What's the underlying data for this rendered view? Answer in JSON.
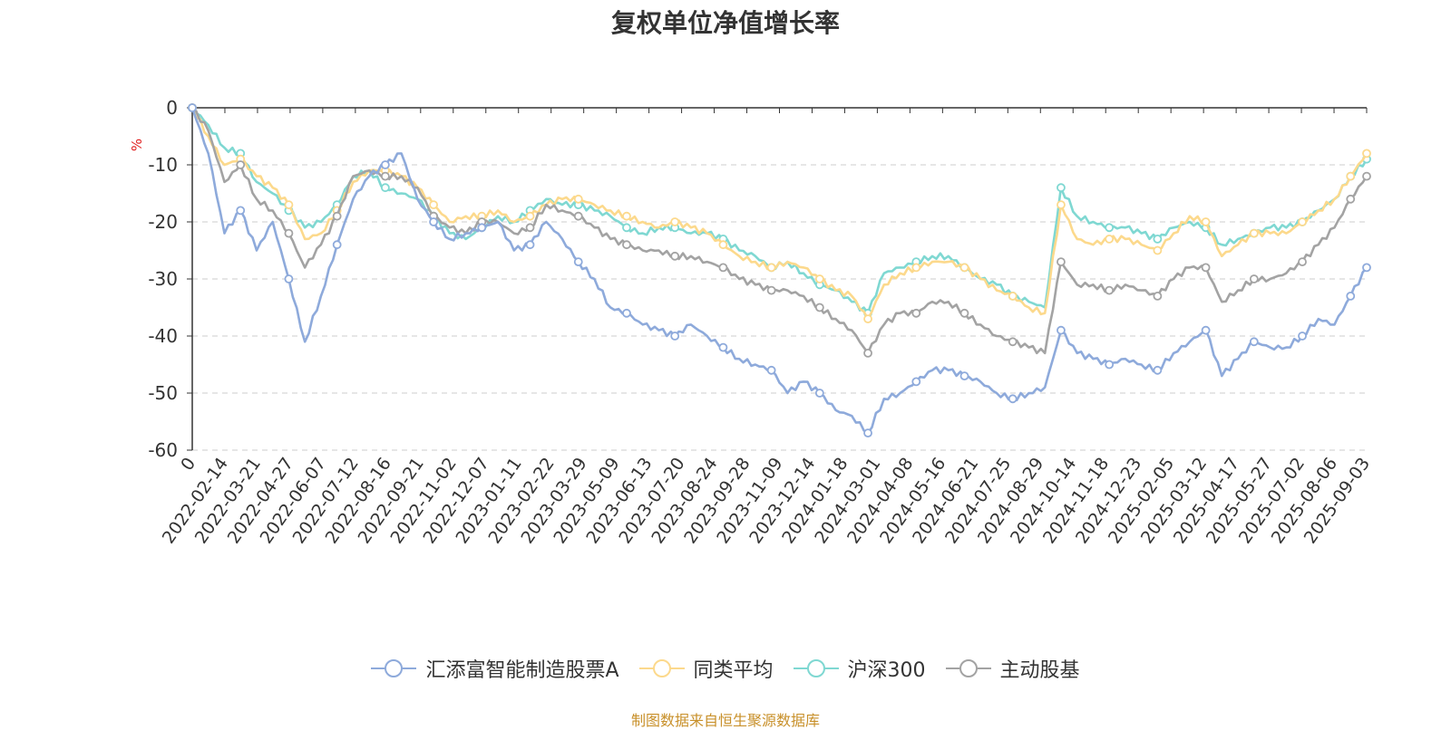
{
  "chart_data": {
    "type": "line",
    "title": "复权单位净值增长率",
    "ylabel": "%",
    "ylim": [
      -60,
      0
    ],
    "yticks": [
      "0",
      "-10",
      "-20",
      "-30",
      "-40",
      "-50",
      "-60"
    ],
    "grid": true,
    "legend_position": "bottom-center",
    "x_tick_labels": [
      "0",
      "2022-02-14",
      "2022-03-21",
      "2022-04-27",
      "2022-06-07",
      "2022-07-12",
      "2022-08-16",
      "2022-09-21",
      "2022-11-02",
      "2022-12-07",
      "2023-01-11",
      "2023-02-22",
      "2023-03-29",
      "2023-05-09",
      "2023-06-13",
      "2023-07-20",
      "2023-08-24",
      "2023-09-28",
      "2023-11-09",
      "2023-12-14",
      "2024-01-18",
      "2024-03-01",
      "2024-04-08",
      "2024-05-16",
      "2024-06-21",
      "2024-07-25",
      "2024-08-29",
      "2024-10-14",
      "2024-11-18",
      "2024-12-23",
      "2025-02-05",
      "2025-03-12",
      "2025-04-17",
      "2025-05-27",
      "2025-07-02",
      "2025-08-06",
      "2025-09-03"
    ],
    "series": [
      {
        "name": "汇添富智能制造股票A",
        "color": "#8eaadb",
        "values": [
          0,
          -8,
          -22,
          -18,
          -25,
          -20,
          -30,
          -41,
          -33,
          -24,
          -16,
          -12,
          -10,
          -8,
          -16,
          -20,
          -23,
          -22,
          -21,
          -20,
          -25,
          -24,
          -20,
          -23,
          -27,
          -30,
          -35,
          -36,
          -38,
          -39,
          -40,
          -38,
          -40,
          -42,
          -44,
          -45,
          -46,
          -50,
          -48,
          -50,
          -53,
          -54,
          -57,
          -51,
          -50,
          -48,
          -46,
          -46,
          -47,
          -48,
          -50,
          -51,
          -50,
          -49,
          -39,
          -43,
          -44,
          -45,
          -44,
          -45,
          -46,
          -43,
          -41,
          -39,
          -47,
          -44,
          -41,
          -42,
          -42,
          -40,
          -37,
          -38,
          -33,
          -28
        ]
      },
      {
        "name": "同类平均",
        "color": "#fcd98c",
        "values": [
          0,
          -5,
          -10,
          -9,
          -12,
          -14,
          -17,
          -23,
          -22,
          -18,
          -13,
          -11,
          -11,
          -12,
          -14,
          -17,
          -20,
          -19,
          -19,
          -18,
          -20,
          -19,
          -17,
          -16,
          -16,
          -17,
          -18,
          -19,
          -20,
          -21,
          -20,
          -21,
          -22,
          -24,
          -26,
          -27,
          -28,
          -27,
          -28,
          -30,
          -32,
          -33,
          -37,
          -31,
          -29,
          -28,
          -27,
          -27,
          -28,
          -30,
          -32,
          -33,
          -35,
          -36,
          -17,
          -23,
          -24,
          -23,
          -23,
          -24,
          -25,
          -22,
          -19,
          -20,
          -26,
          -24,
          -22,
          -22,
          -22,
          -20,
          -18,
          -16,
          -12,
          -8
        ]
      },
      {
        "name": "沪深300",
        "color": "#7fd8d2",
        "values": [
          0,
          -3,
          -7,
          -8,
          -13,
          -15,
          -18,
          -21,
          -20,
          -17,
          -12,
          -11,
          -14,
          -15,
          -16,
          -19,
          -22,
          -23,
          -21,
          -19,
          -20,
          -18,
          -16,
          -17,
          -17,
          -18,
          -19,
          -21,
          -22,
          -21,
          -21,
          -22,
          -22,
          -23,
          -25,
          -26,
          -28,
          -27,
          -29,
          -31,
          -32,
          -34,
          -36,
          -29,
          -28,
          -27,
          -26,
          -26,
          -28,
          -30,
          -31,
          -33,
          -34,
          -35,
          -14,
          -19,
          -20,
          -21,
          -21,
          -22,
          -23,
          -21,
          -20,
          -21,
          -24,
          -23,
          -22,
          -21,
          -21,
          -20,
          -18,
          -16,
          -12,
          -9
        ]
      },
      {
        "name": "主动股基",
        "color": "#a3a3a3",
        "values": [
          0,
          -4,
          -13,
          -10,
          -16,
          -18,
          -22,
          -28,
          -24,
          -19,
          -12,
          -11,
          -12,
          -12,
          -14,
          -19,
          -21,
          -22,
          -20,
          -20,
          -22,
          -21,
          -17,
          -18,
          -19,
          -21,
          -23,
          -24,
          -25,
          -25,
          -26,
          -26,
          -27,
          -28,
          -30,
          -31,
          -32,
          -32,
          -33,
          -35,
          -37,
          -39,
          -43,
          -38,
          -36,
          -36,
          -34,
          -34,
          -36,
          -38,
          -40,
          -41,
          -42,
          -43,
          -27,
          -31,
          -31,
          -32,
          -31,
          -32,
          -33,
          -30,
          -28,
          -28,
          -34,
          -32,
          -30,
          -30,
          -29,
          -27,
          -24,
          -21,
          -16,
          -12
        ]
      }
    ]
  },
  "source": "制图数据来自恒生聚源数据库"
}
